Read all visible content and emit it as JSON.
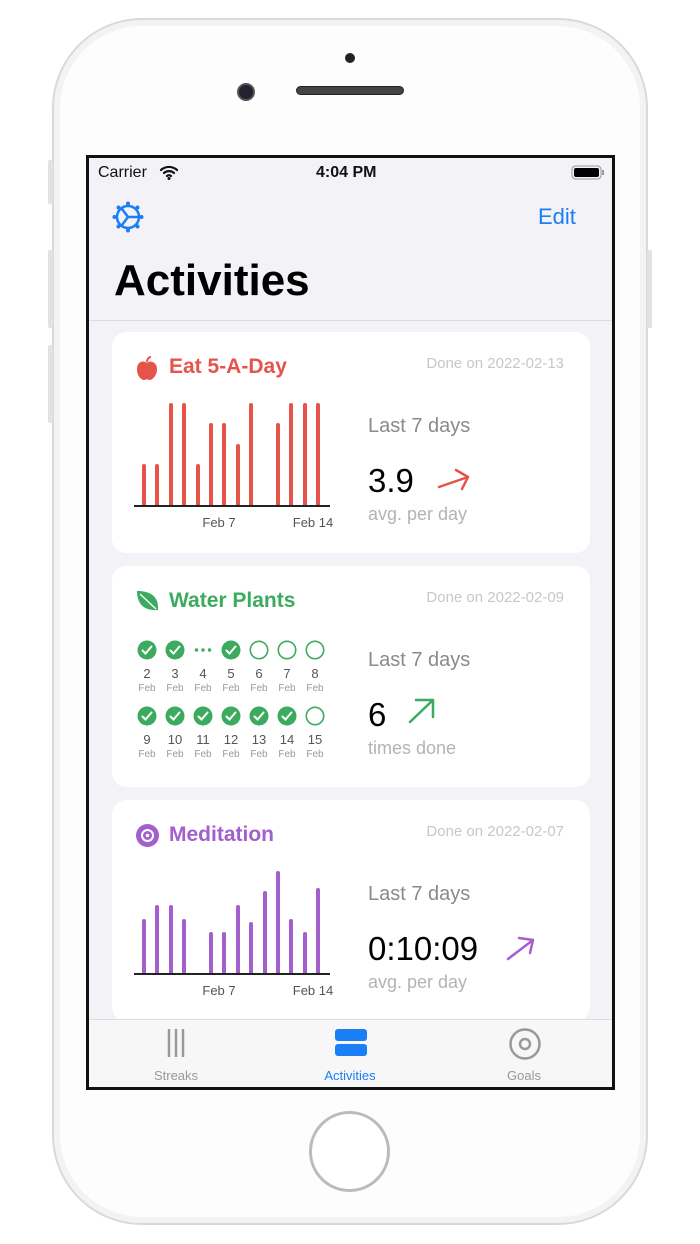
{
  "status_bar": {
    "carrier": "Carrier",
    "time": "4:04 PM"
  },
  "nav": {
    "settings_icon": "gear-icon",
    "edit_label": "Edit",
    "title": "Activities"
  },
  "colors": {
    "accent": "#1a7ef5",
    "eat": "#e5534b",
    "water": "#3dab5f",
    "meditation": "#a35fcc"
  },
  "cards": [
    {
      "title": "Eat 5-A-Day",
      "icon": "apple-icon",
      "done": "Done on 2022-02-13",
      "period": "Last 7 days",
      "value": "3.9",
      "trend": "up",
      "unit": "avg. per day"
    },
    {
      "title": "Water Plants",
      "icon": "leaf-icon",
      "done": "Done on 2022-02-09",
      "period": "Last 7 days",
      "value": "6",
      "trend": "up",
      "unit": "times done",
      "days": [
        {
          "day": "2",
          "month": "Feb",
          "state": "done"
        },
        {
          "day": "3",
          "month": "Feb",
          "state": "done"
        },
        {
          "day": "4",
          "month": "Feb",
          "state": "skipped"
        },
        {
          "day": "5",
          "month": "Feb",
          "state": "done"
        },
        {
          "day": "6",
          "month": "Feb",
          "state": "not-done"
        },
        {
          "day": "7",
          "month": "Feb",
          "state": "not-done"
        },
        {
          "day": "8",
          "month": "Feb",
          "state": "not-done"
        },
        {
          "day": "9",
          "month": "Feb",
          "state": "done"
        },
        {
          "day": "10",
          "month": "Feb",
          "state": "done"
        },
        {
          "day": "11",
          "month": "Feb",
          "state": "done"
        },
        {
          "day": "12",
          "month": "Feb",
          "state": "done"
        },
        {
          "day": "13",
          "month": "Feb",
          "state": "done"
        },
        {
          "day": "14",
          "month": "Feb",
          "state": "done"
        },
        {
          "day": "15",
          "month": "Feb",
          "state": "not-done"
        }
      ]
    },
    {
      "title": "Meditation",
      "icon": "target-icon",
      "done": "Done on 2022-02-07",
      "period": "Last 7 days",
      "value": "0:10:09",
      "trend": "up",
      "unit": "avg. per day"
    }
  ],
  "chart_data": [
    {
      "type": "bar",
      "categories": [
        "Feb 2",
        "Feb 3",
        "Feb 4",
        "Feb 5",
        "Feb 6",
        "Feb 7",
        "Feb 8",
        "Feb 9",
        "Feb 10",
        "Feb 11",
        "Feb 12",
        "Feb 13",
        "Feb 14",
        "Feb 15"
      ],
      "values": [
        2,
        2,
        5,
        5,
        2,
        4,
        4,
        3,
        5,
        0,
        4,
        5,
        5,
        5
      ],
      "tick_labels": [
        "Feb 7",
        "Feb 14"
      ],
      "ylim": [
        0,
        5
      ]
    },
    {
      "type": "bar",
      "categories": [
        "Feb 2",
        "Feb 3",
        "Feb 4",
        "Feb 5",
        "Feb 6",
        "Feb 7",
        "Feb 8",
        "Feb 9",
        "Feb 10",
        "Feb 11",
        "Feb 12",
        "Feb 13",
        "Feb 14",
        "Feb 15"
      ],
      "values": [
        8,
        10,
        10,
        8,
        0,
        6,
        6,
        10,
        7.5,
        12,
        15,
        8,
        6,
        12.5
      ],
      "tick_labels": [
        "Feb 7",
        "Feb 14"
      ],
      "ylim": [
        0,
        15
      ]
    }
  ],
  "tabs": [
    {
      "label": "Streaks",
      "icon": "streaks-icon"
    },
    {
      "label": "Activities",
      "icon": "activities-icon",
      "selected": true
    },
    {
      "label": "Goals",
      "icon": "goals-icon"
    }
  ]
}
